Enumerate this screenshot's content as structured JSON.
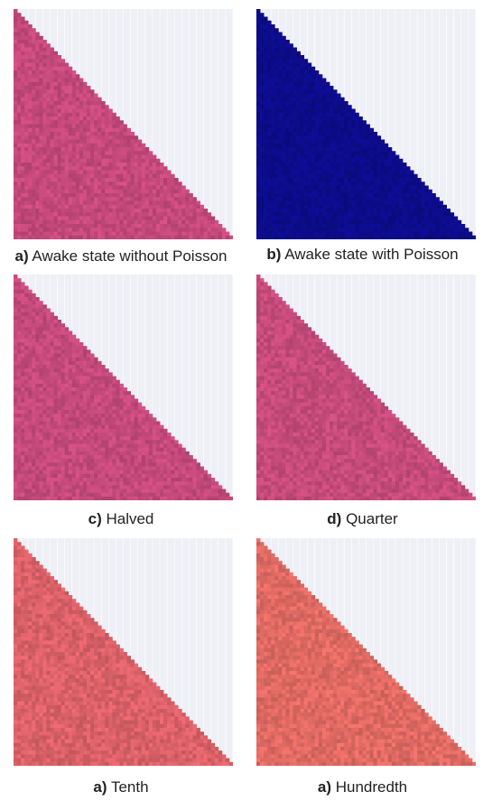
{
  "chart_data": [
    {
      "type": "heatmap",
      "letter": "a)",
      "caption": "Awake state without Poisson",
      "shape": "lower-triangle",
      "base_color": "#c4497a",
      "background_color": "#eef0f6"
    },
    {
      "type": "heatmap",
      "letter": "b)",
      "caption": "Awake state with Poisson",
      "shape": "lower-triangle",
      "base_color": "#0d0c8a",
      "background_color": "#eef0f6"
    },
    {
      "type": "heatmap",
      "letter": "c)",
      "caption": "Halved",
      "shape": "lower-triangle",
      "base_color": "#c44a7a",
      "background_color": "#eef0f6"
    },
    {
      "type": "heatmap",
      "letter": "d)",
      "caption": "Quarter",
      "shape": "lower-triangle",
      "base_color": "#c54b79",
      "background_color": "#eef0f6"
    },
    {
      "type": "heatmap",
      "letter": "a)",
      "caption": "Tenth",
      "shape": "lower-triangle",
      "base_color": "#da6168",
      "background_color": "#eef0f6"
    },
    {
      "type": "heatmap",
      "letter": "a)",
      "caption": "Hundredth",
      "shape": "lower-triangle",
      "base_color": "#df6a63",
      "background_color": "#eef0f6"
    }
  ]
}
